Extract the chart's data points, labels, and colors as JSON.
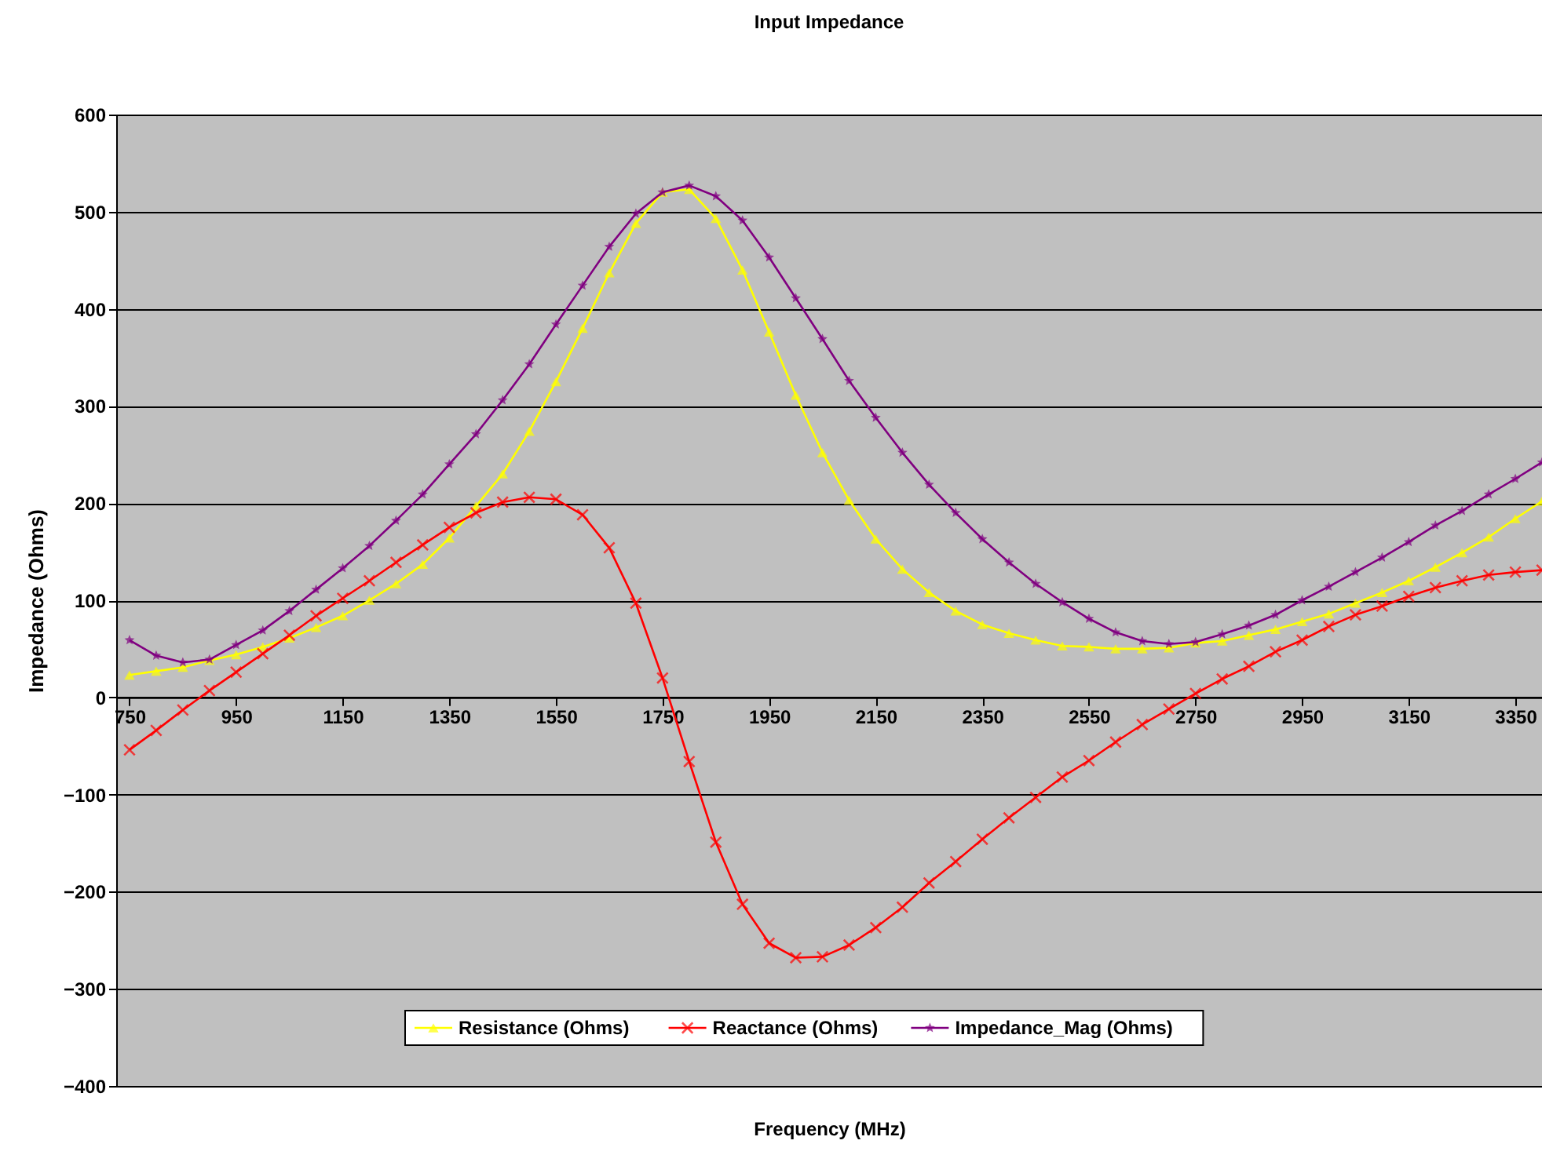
{
  "chart_data": {
    "type": "line",
    "title": "Input Impedance",
    "xlabel": "Frequency (MHz)",
    "ylabel": "Impedance (Ohms)",
    "x": [
      750,
      800,
      850,
      900,
      950,
      1000,
      1050,
      1100,
      1150,
      1200,
      1250,
      1300,
      1350,
      1400,
      1450,
      1500,
      1550,
      1600,
      1650,
      1700,
      1750,
      1800,
      1850,
      1900,
      1950,
      2000,
      2050,
      2100,
      2150,
      2200,
      2250,
      2300,
      2350,
      2400,
      2450,
      2500,
      2550,
      2600,
      2650,
      2700,
      2750,
      2800,
      2850,
      2900,
      2950,
      3000,
      3050,
      3100,
      3150,
      3200,
      3250,
      3300,
      3350,
      3400
    ],
    "series": [
      {
        "name": "Resistance (Ohms)",
        "color": "#ffff00",
        "marker": "triangle",
        "values": [
          23,
          27,
          31,
          38,
          44,
          52,
          61,
          72,
          84,
          100,
          117,
          137,
          164,
          197,
          230,
          274,
          325,
          380,
          437,
          488,
          520,
          523,
          493,
          440,
          376,
          311,
          252,
          203,
          163,
          132,
          108,
          89,
          75,
          66,
          59,
          53,
          52,
          50,
          50,
          51,
          56,
          58,
          64,
          70,
          78,
          86,
          97,
          108,
          120,
          134,
          149,
          165,
          184,
          202
        ]
      },
      {
        "name": "Reactance (Ohms)",
        "color": "#ff0000",
        "marker": "cross",
        "values": [
          -54,
          -34,
          -13,
          7,
          26,
          45,
          64,
          84,
          102,
          120,
          139,
          157,
          175,
          190,
          201,
          206,
          204,
          188,
          154,
          97,
          20,
          -66,
          -149,
          -213,
          -253,
          -268,
          -267,
          -255,
          -237,
          -216,
          -191,
          -169,
          -146,
          -124,
          -103,
          -82,
          -65,
          -46,
          -28,
          -12,
          4,
          19,
          32,
          47,
          59,
          73,
          85,
          94,
          104,
          113,
          120,
          126,
          129,
          131
        ]
      },
      {
        "name": "Impedance_Mag (Ohms)",
        "color": "#800080",
        "marker": "star",
        "values": [
          59,
          43,
          36,
          39,
          54,
          69,
          89,
          111,
          133,
          156,
          182,
          209,
          240,
          271,
          306,
          343,
          384,
          424,
          464,
          498,
          520,
          527,
          516,
          491,
          453,
          411,
          369,
          326,
          288,
          252,
          219,
          190,
          163,
          139,
          117,
          98,
          81,
          67,
          58,
          55,
          57,
          65,
          74,
          85,
          100,
          114,
          129,
          144,
          160,
          177,
          192,
          209,
          225,
          242
        ]
      }
    ],
    "xlim": [
      725,
      3400
    ],
    "xticks": [
      750,
      950,
      1150,
      1350,
      1550,
      1750,
      1950,
      2150,
      2350,
      2550,
      2750,
      2950,
      3150,
      3350
    ],
    "ylim": [
      -400,
      600
    ],
    "yticks": [
      -400,
      -300,
      -200,
      -100,
      0,
      100,
      200,
      300,
      400,
      500,
      600
    ],
    "grid": "y",
    "legend": "bottom",
    "line_style": "solid"
  }
}
